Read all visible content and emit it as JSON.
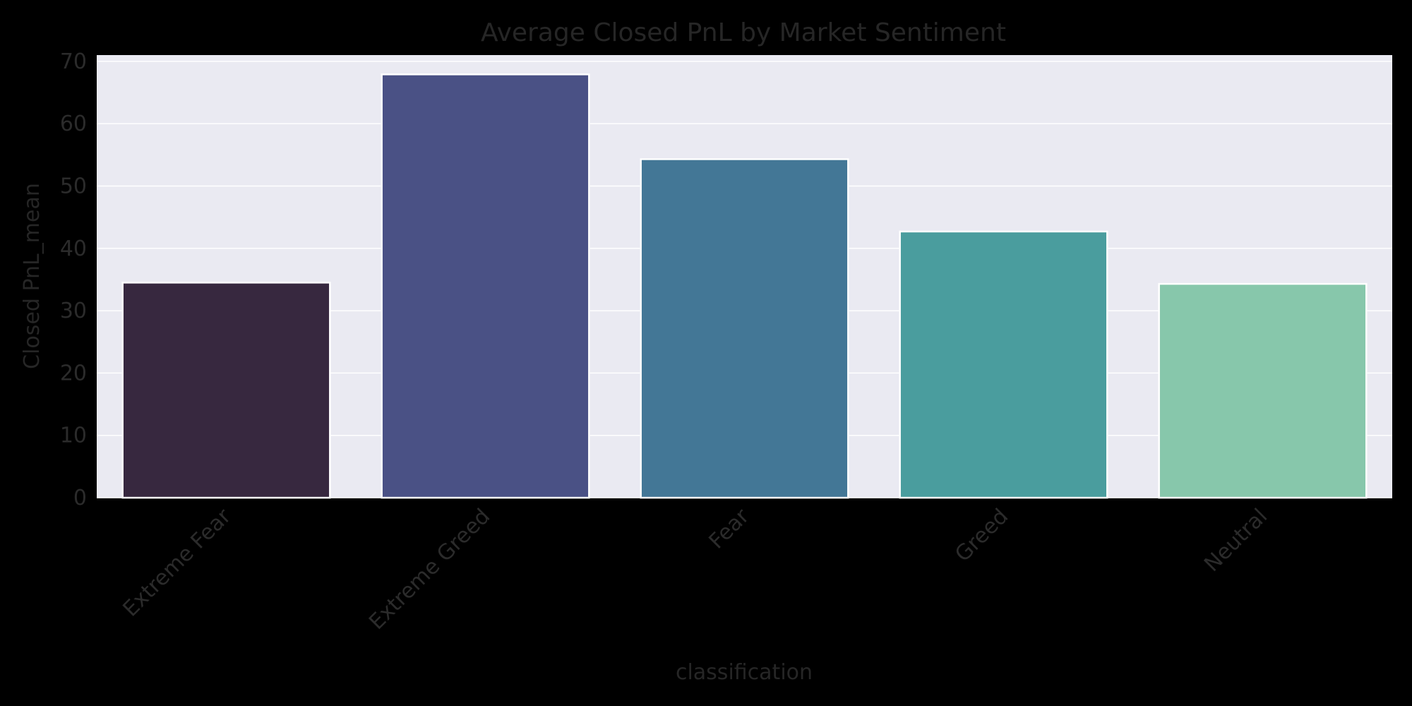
{
  "chart_data": {
    "type": "bar",
    "title": "Average Closed PnL by Market Sentiment",
    "xlabel": "classification",
    "ylabel": "Closed PnL_mean",
    "categories": [
      "Extreme Fear",
      "Extreme Greed",
      "Fear",
      "Greed",
      "Neutral"
    ],
    "values": [
      34.5,
      67.9,
      54.3,
      42.7,
      34.3
    ],
    "ylim": [
      0,
      71
    ],
    "yticks": [
      0,
      10,
      20,
      30,
      40,
      50,
      60,
      70
    ],
    "grid": true,
    "legend": "none",
    "colors": [
      "#37283f",
      "#4a5185",
      "#437796",
      "#4a9d9e",
      "#87c7ab"
    ],
    "plot_background": "#eaeaf2",
    "figure_background": "#000000"
  }
}
